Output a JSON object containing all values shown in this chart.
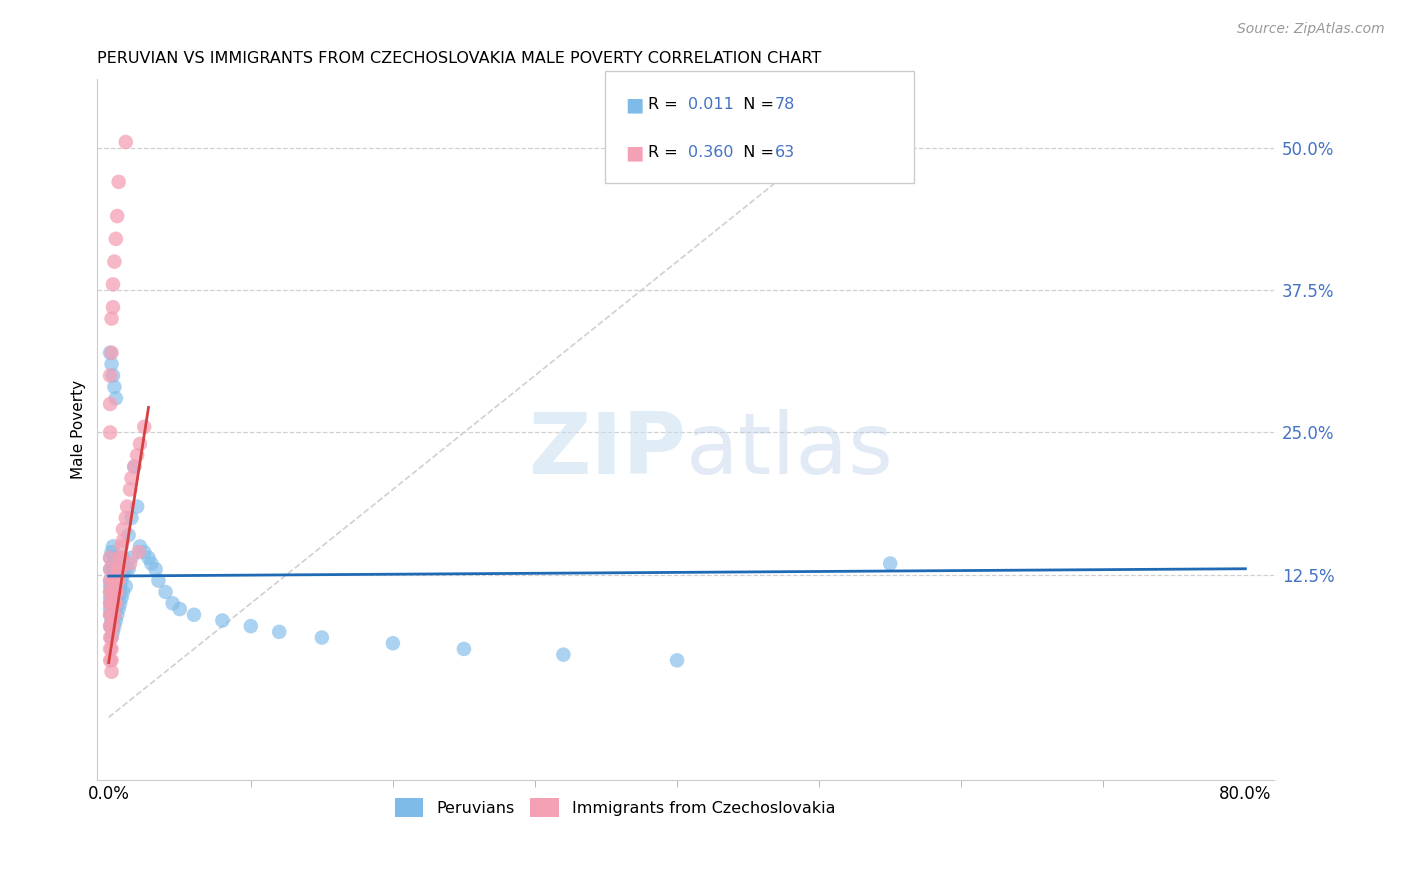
{
  "title": "PERUVIAN VS IMMIGRANTS FROM CZECHOSLOVAKIA MALE POVERTY CORRELATION CHART",
  "source": "Source: ZipAtlas.com",
  "ylabel": "Male Poverty",
  "right_yticks": [
    "50.0%",
    "37.5%",
    "25.0%",
    "12.5%"
  ],
  "right_ytick_vals": [
    0.5,
    0.375,
    0.25,
    0.125
  ],
  "legend1_R": "0.011",
  "legend1_N": "78",
  "legend2_R": "0.360",
  "legend2_N": "63",
  "blue_color": "#7fbbe8",
  "pink_color": "#f4a0b5",
  "blue_line_color": "#1f6ab5",
  "pink_line_color": "#d64040",
  "diag_line_color": "#d0d0d0",
  "xlim_max": 0.8,
  "ylim_min": -0.055,
  "ylim_max": 0.56,
  "peru_x": [
    0.001,
    0.001,
    0.001,
    0.001,
    0.001,
    0.001,
    0.001,
    0.001,
    0.001,
    0.001,
    0.002,
    0.002,
    0.002,
    0.002,
    0.002,
    0.002,
    0.002,
    0.002,
    0.003,
    0.003,
    0.003,
    0.003,
    0.003,
    0.003,
    0.004,
    0.004,
    0.004,
    0.004,
    0.004,
    0.005,
    0.005,
    0.005,
    0.005,
    0.006,
    0.006,
    0.006,
    0.007,
    0.007,
    0.007,
    0.008,
    0.008,
    0.009,
    0.009,
    0.01,
    0.01,
    0.01,
    0.012,
    0.012,
    0.014,
    0.014,
    0.016,
    0.016,
    0.018,
    0.02,
    0.022,
    0.025,
    0.028,
    0.03,
    0.033,
    0.035,
    0.04,
    0.045,
    0.05,
    0.06,
    0.08,
    0.1,
    0.12,
    0.15,
    0.2,
    0.25,
    0.32,
    0.4,
    0.55,
    0.001,
    0.002,
    0.003,
    0.004,
    0.005
  ],
  "peru_y": [
    0.08,
    0.09,
    0.1,
    0.11,
    0.12,
    0.13,
    0.14,
    0.095,
    0.105,
    0.115,
    0.07,
    0.085,
    0.1,
    0.115,
    0.13,
    0.145,
    0.08,
    0.09,
    0.075,
    0.09,
    0.105,
    0.12,
    0.135,
    0.15,
    0.08,
    0.095,
    0.11,
    0.125,
    0.14,
    0.085,
    0.1,
    0.115,
    0.13,
    0.09,
    0.105,
    0.12,
    0.095,
    0.11,
    0.125,
    0.1,
    0.115,
    0.105,
    0.12,
    0.11,
    0.125,
    0.14,
    0.115,
    0.13,
    0.16,
    0.13,
    0.175,
    0.14,
    0.22,
    0.185,
    0.15,
    0.145,
    0.14,
    0.135,
    0.13,
    0.12,
    0.11,
    0.1,
    0.095,
    0.09,
    0.085,
    0.08,
    0.075,
    0.07,
    0.065,
    0.06,
    0.055,
    0.05,
    0.135,
    0.32,
    0.31,
    0.3,
    0.29,
    0.28
  ],
  "czech_x": [
    0.001,
    0.001,
    0.001,
    0.001,
    0.001,
    0.001,
    0.001,
    0.001,
    0.001,
    0.001,
    0.002,
    0.002,
    0.002,
    0.002,
    0.002,
    0.002,
    0.002,
    0.002,
    0.003,
    0.003,
    0.003,
    0.003,
    0.003,
    0.004,
    0.004,
    0.004,
    0.004,
    0.005,
    0.005,
    0.005,
    0.006,
    0.006,
    0.006,
    0.007,
    0.007,
    0.008,
    0.008,
    0.009,
    0.009,
    0.01,
    0.01,
    0.012,
    0.013,
    0.015,
    0.016,
    0.018,
    0.02,
    0.022,
    0.025,
    0.001,
    0.001,
    0.001,
    0.002,
    0.002,
    0.003,
    0.003,
    0.004,
    0.005,
    0.006,
    0.007,
    0.015,
    0.021,
    0.012
  ],
  "czech_y": [
    0.07,
    0.08,
    0.09,
    0.1,
    0.11,
    0.12,
    0.13,
    0.14,
    0.06,
    0.05,
    0.07,
    0.08,
    0.09,
    0.1,
    0.11,
    0.06,
    0.05,
    0.04,
    0.08,
    0.09,
    0.1,
    0.11,
    0.12,
    0.09,
    0.1,
    0.11,
    0.12,
    0.1,
    0.11,
    0.12,
    0.11,
    0.12,
    0.13,
    0.12,
    0.13,
    0.13,
    0.14,
    0.14,
    0.15,
    0.155,
    0.165,
    0.175,
    0.185,
    0.2,
    0.21,
    0.22,
    0.23,
    0.24,
    0.255,
    0.25,
    0.275,
    0.3,
    0.32,
    0.35,
    0.36,
    0.38,
    0.4,
    0.42,
    0.44,
    0.47,
    0.135,
    0.145,
    0.505
  ]
}
